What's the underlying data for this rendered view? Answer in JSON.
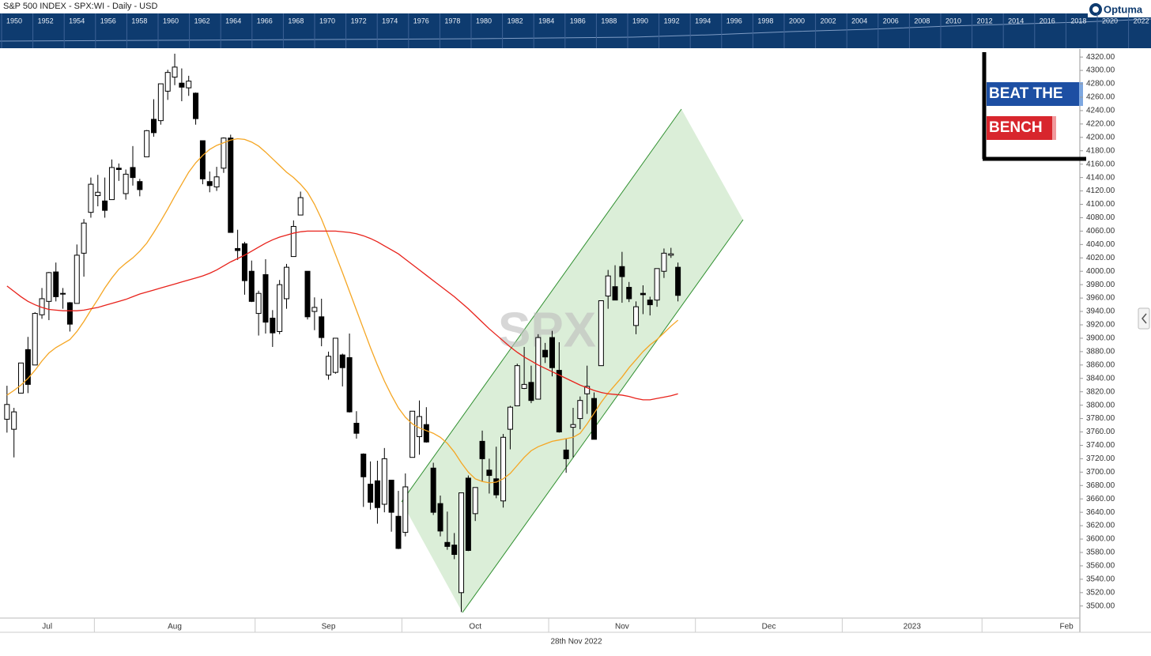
{
  "chart_data": {
    "type": "candlestick",
    "title": "S&P 500 INDEX - SPX:WI - Daily - USD",
    "footer": "28th Nov 2022",
    "watermark": "SPX",
    "brand": "Optuma",
    "logo": {
      "line1": "BEAT THE",
      "line2": "BENCH"
    },
    "navigator_years": [
      "1950",
      "1952",
      "1954",
      "1956",
      "1958",
      "1960",
      "1962",
      "1964",
      "1966",
      "1968",
      "1970",
      "1972",
      "1974",
      "1976",
      "1978",
      "1980",
      "1982",
      "1984",
      "1986",
      "1988",
      "1990",
      "1992",
      "1994",
      "1996",
      "1998",
      "2000",
      "2002",
      "2004",
      "2006",
      "2008",
      "2010",
      "2012",
      "2014",
      "2016",
      "2018",
      "2020",
      "2022"
    ],
    "up_color": "#ffffff",
    "down_color": "#000000",
    "open": [
      3779,
      3764,
      3818,
      3883,
      3860,
      3935,
      3955,
      3999,
      3966,
      3953,
      3952,
      4027,
      4088,
      4113,
      4105,
      4107,
      4154,
      4116,
      4155,
      4134,
      4171,
      4227,
      4225,
      4269,
      4290,
      4281,
      4274,
      4266,
      4195,
      4134,
      4126,
      4154,
      4199,
      4034,
      4041,
      4000,
      3937,
      3995,
      3930,
      3910,
      3959,
      4022,
      4084,
      4000,
      3940,
      3932,
      3845,
      3849,
      3875,
      3871,
      3773,
      3727,
      3682,
      3687,
      3652,
      3688,
      3634,
      3610,
      3722,
      3753,
      3771,
      3706,
      3653,
      3595,
      3591,
      3520,
      3691,
      3638,
      3746,
      3703,
      3690,
      3657,
      3764,
      3799,
      3825,
      3834,
      3809,
      3882,
      3901,
      3852,
      3733,
      3767,
      3780,
      3817,
      3810,
      3859,
      3963,
      3977,
      4007,
      3976,
      3919,
      3967,
      3957,
      3957,
      4000,
      4024,
      4006
    ],
    "high": [
      3829,
      3796,
      3863,
      3902,
      3939,
      3975,
      3999,
      4013,
      3975,
      3954,
      4040,
      4078,
      4140,
      4144,
      4140,
      4167,
      4161,
      4152,
      4187,
      4138,
      4211,
      4257,
      4280,
      4301,
      4325,
      4303,
      4292,
      4267,
      4195,
      4149,
      4156,
      4200,
      4204,
      4062,
      4044,
      4016,
      3971,
      4018,
      3942,
      3987,
      4011,
      4076,
      4119,
      4000,
      3961,
      3959,
      3880,
      3900,
      3877,
      3907,
      3791,
      3728,
      3716,
      3717,
      3736,
      3688,
      3672,
      3698,
      3791,
      3807,
      3797,
      3714,
      3665,
      3641,
      3609,
      3669,
      3695,
      3677,
      3762,
      3720,
      3738,
      3757,
      3799,
      3862,
      3887,
      3859,
      3906,
      3893,
      3911,
      3894,
      3750,
      3796,
      3813,
      3859,
      3819,
      3956,
      4002,
      4009,
      4029,
      3984,
      3955,
      3979,
      3962,
      4004,
      4034,
      4035,
      4013
    ],
    "low": [
      3759,
      3722,
      3818,
      3818,
      3860,
      3929,
      3927,
      3955,
      3944,
      3910,
      3952,
      3992,
      4080,
      4097,
      4080,
      4107,
      4135,
      4107,
      4128,
      4112,
      4171,
      4201,
      4219,
      4256,
      4278,
      4254,
      4262,
      4219,
      4130,
      4118,
      4120,
      4147,
      4058,
      4017,
      3965,
      3954,
      3904,
      3907,
      3887,
      3906,
      3944,
      4022,
      4084,
      3928,
      3912,
      3888,
      3838,
      3847,
      3828,
      3789,
      3750,
      3648,
      3644,
      3623,
      3640,
      3611,
      3585,
      3604,
      3722,
      3726,
      3744,
      3636,
      3604,
      3584,
      3570,
      3491,
      3582,
      3627,
      3686,
      3668,
      3661,
      3647,
      3734,
      3799,
      3824,
      3803,
      3809,
      3863,
      3843,
      3759,
      3699,
      3722,
      3764,
      3787,
      3749,
      3859,
      3944,
      3957,
      3953,
      3954,
      3906,
      3936,
      3934,
      3947,
      3990,
      4020,
      3955
    ],
    "close": [
      3801,
      3790,
      3863,
      3831,
      3937,
      3959,
      3998,
      3962,
      3967,
      3921,
      4024,
      4072,
      4130,
      4118,
      4091,
      4155,
      4152,
      4145,
      4140,
      4122,
      4210,
      4207,
      4280,
      4297,
      4305,
      4275,
      4284,
      4228,
      4138,
      4128,
      4141,
      4199,
      4058,
      4031,
      3986,
      3955,
      3967,
      3924,
      3908,
      3980,
      4006,
      4067,
      4110,
      3932,
      3946,
      3901,
      3873,
      3900,
      3856,
      3790,
      3758,
      3693,
      3655,
      3647,
      3720,
      3640,
      3586,
      3678,
      3791,
      3783,
      3745,
      3640,
      3612,
      3589,
      3577,
      3669,
      3583,
      3677,
      3720,
      3695,
      3666,
      3752,
      3797,
      3859,
      3831,
      3807,
      3901,
      3872,
      3856,
      3760,
      3720,
      3771,
      3807,
      3828,
      3749,
      3956,
      3993,
      3957,
      3992,
      3959,
      3947,
      3965,
      3950,
      4004,
      4027,
      4026,
      3964
    ],
    "moving_averages": [
      {
        "color": "#f5a623",
        "values": [
          3815,
          3822,
          3830,
          3840,
          3852,
          3866,
          3878,
          3886,
          3892,
          3898,
          3910,
          3925,
          3942,
          3958,
          3975,
          3990,
          4003,
          4012,
          4020,
          4030,
          4042,
          4058,
          4075,
          4093,
          4112,
          4130,
          4148,
          4162,
          4173,
          4182,
          4188,
          4192,
          4196,
          4198,
          4197,
          4193,
          4187,
          4178,
          4168,
          4158,
          4148,
          4140,
          4130,
          4118,
          4100,
          4078,
          4052,
          4025,
          3998,
          3970,
          3942,
          3914,
          3886,
          3860,
          3836,
          3815,
          3796,
          3782,
          3772,
          3766,
          3762,
          3758,
          3752,
          3743,
          3730,
          3714,
          3700,
          3690,
          3686,
          3684,
          3685,
          3690,
          3698,
          3710,
          3722,
          3732,
          3738,
          3742,
          3746,
          3748,
          3750,
          3752,
          3758,
          3772,
          3788,
          3804,
          3818,
          3830,
          3842,
          3856,
          3868,
          3880,
          3890,
          3898,
          3908,
          3918,
          3927
        ]
      },
      {
        "color": "#e8221b",
        "values": [
          3978,
          3970,
          3962,
          3955,
          3950,
          3946,
          3943,
          3942,
          3941,
          3941,
          3941,
          3942,
          3944,
          3946,
          3949,
          3952,
          3955,
          3958,
          3962,
          3966,
          3969,
          3972,
          3975,
          3978,
          3981,
          3984,
          3987,
          3990,
          3993,
          3997,
          4002,
          4008,
          4014,
          4019,
          4024,
          4030,
          4036,
          4042,
          4047,
          4051,
          4054,
          4057,
          4059,
          4060,
          4060,
          4060,
          4060,
          4060,
          4059,
          4058,
          4056,
          4053,
          4049,
          4044,
          4038,
          4032,
          4026,
          4018,
          4010,
          4002,
          3994,
          3986,
          3978,
          3970,
          3962,
          3953,
          3944,
          3934,
          3924,
          3914,
          3905,
          3896,
          3887,
          3879,
          3872,
          3866,
          3860,
          3855,
          3850,
          3845,
          3840,
          3835,
          3830,
          3826,
          3822,
          3819,
          3817,
          3816,
          3815,
          3813,
          3810,
          3808,
          3808,
          3810,
          3812,
          3814,
          3817
        ]
      }
    ],
    "xlim": [
      -1,
      153.5
    ],
    "xticks": [
      {
        "value": -8.5,
        "label": "Jul"
      },
      {
        "value": 12.5,
        "label": "Aug"
      },
      {
        "value": 35.5,
        "label": "Sep"
      },
      {
        "value": 56.5,
        "label": "Oct"
      },
      {
        "value": 77.5,
        "label": "Nov"
      },
      {
        "value": 98.5,
        "label": "Dec"
      },
      {
        "value": 119.5,
        "label": "2023"
      },
      {
        "value": 139.5,
        "label": "Feb"
      }
    ],
    "ylim": [
      3482,
      4332
    ],
    "yticks": [
      {
        "value": 3500,
        "label": "3500.00"
      },
      {
        "value": 3520,
        "label": "3520.00"
      },
      {
        "value": 3540,
        "label": "3540.00"
      },
      {
        "value": 3560,
        "label": "3560.00"
      },
      {
        "value": 3580,
        "label": "3580.00"
      },
      {
        "value": 3600,
        "label": "3600.00"
      },
      {
        "value": 3620,
        "label": "3620.00"
      },
      {
        "value": 3640,
        "label": "3640.00"
      },
      {
        "value": 3660,
        "label": "3660.00"
      },
      {
        "value": 3680,
        "label": "3680.00"
      },
      {
        "value": 3700,
        "label": "3700.00"
      },
      {
        "value": 3720,
        "label": "3720.00"
      },
      {
        "value": 3740,
        "label": "3740.00"
      },
      {
        "value": 3760,
        "label": "3760.00"
      },
      {
        "value": 3780,
        "label": "3780.00"
      },
      {
        "value": 3800,
        "label": "3800.00"
      },
      {
        "value": 3820,
        "label": "3820.00"
      },
      {
        "value": 3840,
        "label": "3840.00"
      },
      {
        "value": 3860,
        "label": "3860.00"
      },
      {
        "value": 3880,
        "label": "3880.00"
      },
      {
        "value": 3900,
        "label": "3900.00"
      },
      {
        "value": 3920,
        "label": "3920.00"
      },
      {
        "value": 3940,
        "label": "3940.00"
      },
      {
        "value": 3960,
        "label": "3960.00"
      },
      {
        "value": 3980,
        "label": "3980.00"
      },
      {
        "value": 4000,
        "label": "4000.00"
      },
      {
        "value": 4020,
        "label": "4020.00"
      },
      {
        "value": 4040,
        "label": "4040.00"
      },
      {
        "value": 4060,
        "label": "4060.00"
      },
      {
        "value": 4080,
        "label": "4080.00"
      },
      {
        "value": 4100,
        "label": "4100.00"
      },
      {
        "value": 4120,
        "label": "4120.00"
      },
      {
        "value": 4140,
        "label": "4140.00"
      },
      {
        "value": 4160,
        "label": "4160.00"
      },
      {
        "value": 4180,
        "label": "4180.00"
      },
      {
        "value": 4200,
        "label": "4200.00"
      },
      {
        "value": 4220,
        "label": "4220.00"
      },
      {
        "value": 4240,
        "label": "4240.00"
      },
      {
        "value": 4260,
        "label": "4260.00"
      },
      {
        "value": 4280,
        "label": "4280.00"
      },
      {
        "value": 4300,
        "label": "4300.00"
      },
      {
        "value": 4320,
        "label": "4320.00"
      }
    ]
  }
}
